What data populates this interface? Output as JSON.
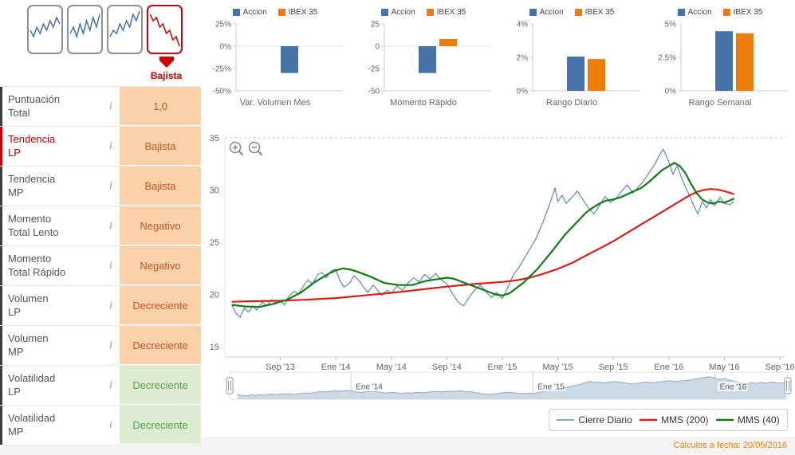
{
  "colors": {
    "accion": "#4572a7",
    "ibex": "#ee7c08",
    "close_line": "#5f87b5",
    "mms200": "#d91e18",
    "mms40": "#0f7d12",
    "neg_bg": "#fad2a9",
    "neg_text": "#c9512e",
    "pos_bg": "#ddecd0",
    "pos_text": "#54a04c",
    "highlight_red": "#cc0000"
  },
  "sidebar": {
    "trend_badge": "Bajista",
    "info_icon": "i",
    "thumbnails": [
      {
        "values": [
          6,
          4,
          7,
          5,
          8,
          6,
          9,
          7,
          10,
          8
        ],
        "selected": false
      },
      {
        "values": [
          5,
          7,
          4,
          8,
          5,
          9,
          6,
          10,
          7,
          11
        ],
        "selected": false
      },
      {
        "values": [
          4,
          6,
          5,
          8,
          6,
          9,
          7,
          11,
          9,
          12
        ],
        "selected": false
      },
      {
        "values": [
          11,
          9,
          10,
          7,
          8,
          5,
          6,
          3,
          4,
          1
        ],
        "selected": true
      }
    ],
    "rows": [
      {
        "label": "Puntuación\nTotal",
        "value": "1,0",
        "state": "neg",
        "highlighted": false
      },
      {
        "label": "Tendencia\nLP",
        "value": "Bajista",
        "state": "neg",
        "highlighted": true
      },
      {
        "label": "Tendencia\nMP",
        "value": "Bajista",
        "state": "neg",
        "highlighted": false
      },
      {
        "label": "Momento\nTotal Lento",
        "value": "Negativo",
        "state": "neg",
        "highlighted": false
      },
      {
        "label": "Momento\nTotal Rápido",
        "value": "Negativo",
        "state": "neg",
        "highlighted": false
      },
      {
        "label": "Volumen\nLP",
        "value": "Decreciente",
        "state": "neg",
        "highlighted": false
      },
      {
        "label": "Volumen\nMP",
        "value": "Decreciente",
        "state": "neg",
        "highlighted": false
      },
      {
        "label": "Volatilidad\nLP",
        "value": "Decreciente",
        "state": "pos",
        "highlighted": false
      },
      {
        "label": "Volatilidad\nMP",
        "value": "Decreciente",
        "state": "pos",
        "highlighted": false
      }
    ]
  },
  "chart_data": {
    "mini_bar_charts": [
      {
        "type": "bar",
        "title": "Var. Volumen Mes",
        "legend": [
          "Accion",
          "IBEX 35"
        ],
        "min": -50,
        "max": 25,
        "ticks": [
          {
            "v": 25,
            "label": "25%"
          },
          {
            "v": 0,
            "label": "0%"
          },
          {
            "v": -25,
            "label": "-25%"
          },
          {
            "v": -50,
            "label": "-50%"
          }
        ],
        "accion": -30,
        "ibex": 0
      },
      {
        "type": "bar",
        "title": "Momento Rápido",
        "legend": [
          "Accion",
          "IBEX 35"
        ],
        "min": -50,
        "max": 25,
        "ticks": [
          {
            "v": 25,
            "label": "25"
          },
          {
            "v": 0,
            "label": "0"
          },
          {
            "v": -25,
            "label": "-25"
          },
          {
            "v": -50,
            "label": "-50"
          }
        ],
        "accion": -30,
        "ibex": 8
      },
      {
        "type": "bar",
        "title": "Rango Diario",
        "legend": [
          "Accion",
          "IBEX 35"
        ],
        "min": 0,
        "max": 4,
        "ticks": [
          {
            "v": 4,
            "label": "4%"
          },
          {
            "v": 2,
            "label": "2%"
          },
          {
            "v": 0,
            "label": "0%"
          }
        ],
        "accion": 2.05,
        "ibex": 1.9
      },
      {
        "type": "bar",
        "title": "Rango Semanal",
        "legend": [
          "Accion",
          "IBEX 35"
        ],
        "min": 0,
        "max": 5,
        "ticks": [
          {
            "v": 5,
            "label": "5%"
          },
          {
            "v": 2.5,
            "label": "2.5%"
          },
          {
            "v": 0,
            "label": "0%"
          }
        ],
        "accion": 4.45,
        "ibex": 4.3
      }
    ],
    "price_chart": {
      "type": "line",
      "ylim": [
        15,
        36.5
      ],
      "y_ticks": [
        35,
        30,
        25,
        20,
        15
      ],
      "x_ticks": [
        {
          "t": 4,
          "label": "Sep '13"
        },
        {
          "t": 8,
          "label": "Ene '14"
        },
        {
          "t": 12,
          "label": "May '14"
        },
        {
          "t": 16,
          "label": "Sep '14"
        },
        {
          "t": 20,
          "label": "Ene '15"
        },
        {
          "t": 24,
          "label": "May '15"
        },
        {
          "t": 28,
          "label": "Sep '15"
        },
        {
          "t": 32,
          "label": "Ene '16"
        },
        {
          "t": 36,
          "label": "May '16"
        },
        {
          "t": 40,
          "label": "Sep '16"
        }
      ],
      "series": [
        {
          "key": "cierre-diario",
          "name": "Cierre Diario",
          "color": "#5f87b5",
          "width": 1.2,
          "points": [
            [
              0.5,
              19.0
            ],
            [
              0.8,
              18.2
            ],
            [
              1.1,
              17.8
            ],
            [
              1.4,
              18.7
            ],
            [
              1.7,
              18.3
            ],
            [
              2.0,
              18.9
            ],
            [
              2.3,
              18.5
            ],
            [
              2.7,
              19.3
            ],
            [
              3.0,
              18.9
            ],
            [
              3.4,
              19.5
            ],
            [
              3.7,
              19.1
            ],
            [
              4.0,
              19.4
            ],
            [
              4.3,
              19.0
            ],
            [
              4.6,
              19.8
            ],
            [
              5.0,
              20.3
            ],
            [
              5.3,
              20.0
            ],
            [
              5.7,
              20.9
            ],
            [
              6.0,
              21.4
            ],
            [
              6.3,
              21.0
            ],
            [
              6.7,
              21.9
            ],
            [
              7.0,
              22.1
            ],
            [
              7.3,
              21.6
            ],
            [
              7.7,
              22.3
            ],
            [
              8.0,
              22.4
            ],
            [
              8.3,
              21.3
            ],
            [
              8.6,
              20.7
            ],
            [
              9.0,
              21.1
            ],
            [
              9.3,
              21.8
            ],
            [
              9.7,
              21.3
            ],
            [
              10.0,
              20.7
            ],
            [
              10.3,
              20.2
            ],
            [
              10.7,
              20.9
            ],
            [
              11.0,
              20.4
            ],
            [
              11.3,
              19.9
            ],
            [
              11.7,
              20.4
            ],
            [
              12.0,
              20.1
            ],
            [
              12.4,
              20.8
            ],
            [
              12.8,
              20.4
            ],
            [
              13.2,
              21.1
            ],
            [
              13.6,
              21.6
            ],
            [
              14.0,
              21.2
            ],
            [
              14.4,
              21.9
            ],
            [
              14.8,
              21.5
            ],
            [
              15.2,
              22.0
            ],
            [
              15.6,
              21.4
            ],
            [
              16.0,
              21.0
            ],
            [
              16.4,
              20.1
            ],
            [
              16.8,
              19.3
            ],
            [
              17.2,
              18.9
            ],
            [
              17.6,
              19.7
            ],
            [
              18.0,
              20.4
            ],
            [
              18.4,
              20.9
            ],
            [
              18.8,
              20.3
            ],
            [
              19.2,
              19.7
            ],
            [
              19.6,
              20.2
            ],
            [
              20.0,
              19.6
            ],
            [
              20.4,
              20.7
            ],
            [
              20.8,
              21.9
            ],
            [
              21.2,
              22.6
            ],
            [
              21.6,
              23.5
            ],
            [
              22.0,
              24.4
            ],
            [
              22.4,
              25.3
            ],
            [
              22.8,
              26.5
            ],
            [
              23.2,
              27.9
            ],
            [
              23.5,
              29.0
            ],
            [
              23.8,
              30.2
            ],
            [
              24.0,
              28.9
            ],
            [
              24.3,
              29.5
            ],
            [
              24.6,
              28.7
            ],
            [
              25.0,
              29.3
            ],
            [
              25.4,
              29.9
            ],
            [
              25.8,
              29.1
            ],
            [
              26.2,
              28.3
            ],
            [
              26.6,
              27.7
            ],
            [
              27.0,
              28.5
            ],
            [
              27.4,
              29.4
            ],
            [
              27.8,
              28.8
            ],
            [
              28.2,
              29.2
            ],
            [
              28.6,
              29.9
            ],
            [
              29.0,
              30.5
            ],
            [
              29.4,
              29.7
            ],
            [
              29.8,
              30.3
            ],
            [
              30.2,
              30.9
            ],
            [
              30.6,
              31.7
            ],
            [
              31.0,
              32.5
            ],
            [
              31.3,
              33.3
            ],
            [
              31.6,
              33.9
            ],
            [
              32.0,
              32.7
            ],
            [
              32.3,
              31.5
            ],
            [
              32.6,
              32.3
            ],
            [
              33.0,
              30.9
            ],
            [
              33.4,
              29.7
            ],
            [
              33.8,
              28.5
            ],
            [
              34.1,
              27.7
            ],
            [
              34.4,
              28.9
            ],
            [
              34.7,
              28.3
            ],
            [
              35.0,
              29.1
            ],
            [
              35.3,
              28.5
            ],
            [
              35.7,
              29.3
            ],
            [
              36.0,
              28.7
            ],
            [
              36.4,
              28.6
            ],
            [
              36.7,
              28.9
            ]
          ]
        },
        {
          "key": "mms-200",
          "name": "MMS (200)",
          "color": "#d91e18",
          "width": 2.2,
          "points": [
            [
              0.5,
              19.3
            ],
            [
              2,
              19.35
            ],
            [
              4,
              19.4
            ],
            [
              6,
              19.5
            ],
            [
              8,
              19.65
            ],
            [
              10,
              19.9
            ],
            [
              12,
              20.15
            ],
            [
              14,
              20.45
            ],
            [
              16,
              20.75
            ],
            [
              18,
              21.0
            ],
            [
              20,
              21.2
            ],
            [
              21,
              21.35
            ],
            [
              22,
              21.6
            ],
            [
              23,
              22.0
            ],
            [
              24,
              22.45
            ],
            [
              25,
              23.0
            ],
            [
              26,
              23.7
            ],
            [
              27,
              24.4
            ],
            [
              28,
              25.1
            ],
            [
              29,
              25.9
            ],
            [
              30,
              26.7
            ],
            [
              31,
              27.5
            ],
            [
              32,
              28.3
            ],
            [
              33,
              29.1
            ],
            [
              33.5,
              29.5
            ],
            [
              34,
              29.8
            ],
            [
              34.5,
              30.0
            ],
            [
              35,
              30.1
            ],
            [
              35.5,
              30.05
            ],
            [
              36,
              29.9
            ],
            [
              36.7,
              29.6
            ]
          ]
        },
        {
          "key": "mms-40",
          "name": "MMS (40)",
          "color": "#0f7d12",
          "width": 2.2,
          "points": [
            [
              0.5,
              19.0
            ],
            [
              1.5,
              18.85
            ],
            [
              2.5,
              18.8
            ],
            [
              3.5,
              19.1
            ],
            [
              4.5,
              19.5
            ],
            [
              5.5,
              20.2
            ],
            [
              6.5,
              21.2
            ],
            [
              7.5,
              22.0
            ],
            [
              8.0,
              22.3
            ],
            [
              8.5,
              22.5
            ],
            [
              9.0,
              22.4
            ],
            [
              9.5,
              22.2
            ],
            [
              10.5,
              21.7
            ],
            [
              11.5,
              21.1
            ],
            [
              12.5,
              20.9
            ],
            [
              13.5,
              20.9
            ],
            [
              14.5,
              21.3
            ],
            [
              15.5,
              21.5
            ],
            [
              16.0,
              21.6
            ],
            [
              16.5,
              21.5
            ],
            [
              17.5,
              21.0
            ],
            [
              18.5,
              20.5
            ],
            [
              19.5,
              20.0
            ],
            [
              20.0,
              19.9
            ],
            [
              20.5,
              20.1
            ],
            [
              21.5,
              21.1
            ],
            [
              22.5,
              22.4
            ],
            [
              23.5,
              24.0
            ],
            [
              24.5,
              25.7
            ],
            [
              25.5,
              27.1
            ],
            [
              26.0,
              27.8
            ],
            [
              26.5,
              28.3
            ],
            [
              27.0,
              28.7
            ],
            [
              27.5,
              29.0
            ],
            [
              28.0,
              29.1
            ],
            [
              28.5,
              29.3
            ],
            [
              29.0,
              29.6
            ],
            [
              29.5,
              29.9
            ],
            [
              30.0,
              30.2
            ],
            [
              30.5,
              30.7
            ],
            [
              31.0,
              31.3
            ],
            [
              31.5,
              31.9
            ],
            [
              32.0,
              32.3
            ],
            [
              32.4,
              32.6
            ],
            [
              32.8,
              32.3
            ],
            [
              33.2,
              31.6
            ],
            [
              33.6,
              30.6
            ],
            [
              34.0,
              29.7
            ],
            [
              34.4,
              29.1
            ],
            [
              34.8,
              28.8
            ],
            [
              35.2,
              28.7
            ],
            [
              35.6,
              28.9
            ],
            [
              36.0,
              28.8
            ],
            [
              36.4,
              29.0
            ],
            [
              36.7,
              29.2
            ]
          ]
        }
      ]
    },
    "navigator": {
      "labels": [
        {
          "t": 8,
          "label": "Ene '14"
        },
        {
          "t": 20,
          "label": "Ene '15"
        },
        {
          "t": 32,
          "label": "Ene '16"
        }
      ]
    }
  },
  "footer": {
    "calc_date": "Cálculos a fecha: 20/05/2016"
  }
}
